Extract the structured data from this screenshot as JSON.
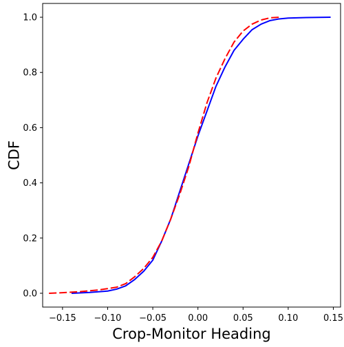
{
  "chart_data": {
    "type": "line",
    "title": "",
    "xlabel": "Crop-Monitor Heading",
    "ylabel": "CDF",
    "xlim": [
      -0.172,
      0.158
    ],
    "ylim": [
      -0.05,
      1.05
    ],
    "xticks": [
      -0.15,
      -0.1,
      -0.05,
      0.0,
      0.05,
      0.1,
      0.15
    ],
    "xtick_labels": [
      "−0.15",
      "−0.10",
      "−0.05",
      "0.00",
      "0.05",
      "0.10",
      "0.15"
    ],
    "yticks": [
      0.0,
      0.2,
      0.4,
      0.6,
      0.8,
      1.0
    ],
    "ytick_labels": [
      "0.0",
      "0.2",
      "0.4",
      "0.6",
      "0.8",
      "1.0"
    ],
    "grid": false,
    "legend": "none",
    "series": [
      {
        "color": "#0000ff",
        "dash": "solid",
        "x": [
          -0.14,
          -0.12,
          -0.1,
          -0.09,
          -0.08,
          -0.07,
          -0.06,
          -0.05,
          -0.04,
          -0.03,
          -0.02,
          -0.01,
          0.0,
          0.01,
          0.02,
          0.03,
          0.04,
          0.05,
          0.06,
          0.07,
          0.08,
          0.09,
          0.1,
          0.12,
          0.147
        ],
        "y": [
          0.0,
          0.003,
          0.008,
          0.015,
          0.027,
          0.05,
          0.08,
          0.12,
          0.19,
          0.27,
          0.37,
          0.47,
          0.57,
          0.66,
          0.75,
          0.82,
          0.88,
          0.92,
          0.955,
          0.975,
          0.988,
          0.994,
          0.997,
          0.999,
          1.0
        ]
      },
      {
        "color": "#ff0000",
        "dash": "dashed",
        "x": [
          -0.165,
          -0.15,
          -0.13,
          -0.11,
          -0.09,
          -0.08,
          -0.07,
          -0.06,
          -0.05,
          -0.04,
          -0.03,
          -0.02,
          -0.01,
          0.0,
          0.01,
          0.02,
          0.03,
          0.04,
          0.05,
          0.06,
          0.07,
          0.08,
          0.09
        ],
        "y": [
          0.0,
          0.002,
          0.006,
          0.012,
          0.022,
          0.035,
          0.06,
          0.09,
          0.13,
          0.19,
          0.27,
          0.36,
          0.46,
          0.58,
          0.69,
          0.78,
          0.85,
          0.91,
          0.95,
          0.975,
          0.99,
          0.998,
          1.0
        ]
      }
    ]
  }
}
